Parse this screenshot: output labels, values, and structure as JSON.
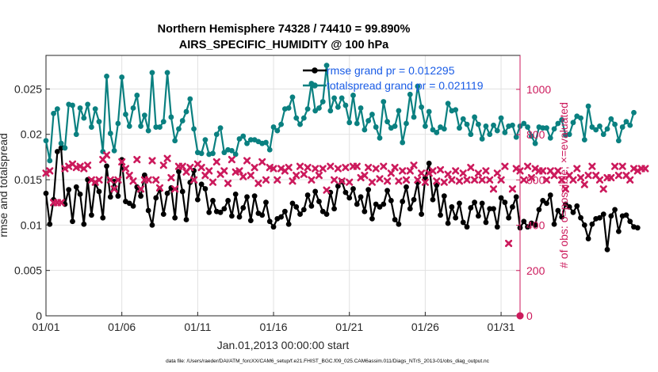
{
  "chart_data": {
    "type": "line",
    "title": "Northern Hemisphere 74328 / 74410 = 99.890%",
    "subtitle": "AIRS_SPECIFIC_HUMIDITY @ 100 hPa",
    "xlabel": "Jan.01,2013 00:00:00 start",
    "ylabel": "rmse and totalspread",
    "ylabel_right": "# of obs: o=possible; ×=evaluated",
    "footnote": "data file: /Users/raeder/DAI/ATM_forcXX/CAM6_setup/f.e21.FHIST_BGC.f09_025.CAM6assim.011/Diags_NTrS_2013-01/obs_diag_output.nc",
    "x_ticks": [
      "01/01",
      "01/06",
      "01/11",
      "01/16",
      "01/21",
      "01/26",
      "01/31"
    ],
    "x_tick_days": [
      0,
      5,
      10,
      15,
      20,
      25,
      30
    ],
    "xlim": [
      0,
      31.25
    ],
    "y_ticks": [
      "0",
      "0.005",
      "0.01",
      "0.015",
      "0.02",
      "0.025"
    ],
    "y_tick_values": [
      0,
      0.005,
      0.01,
      0.015,
      0.02,
      0.025
    ],
    "ylim": [
      0,
      0.0287
    ],
    "y2_ticks": [
      "0",
      "200",
      "400",
      "600",
      "800",
      "1000"
    ],
    "y2_tick_values": [
      0,
      200,
      400,
      600,
      800,
      1000
    ],
    "y2lim": [
      0,
      1150
    ],
    "grid": true,
    "legend_position": "top-right",
    "x_step_days": 0.25,
    "series": [
      {
        "name": "rmse grand pr = 0.012295",
        "color": "#000000",
        "marker": "circle",
        "axis": "left",
        "values": [
          0.0135,
          0.0101,
          0.0128,
          0.0181,
          0.0185,
          0.0123,
          0.0139,
          0.0104,
          0.0142,
          0.0134,
          0.0101,
          0.015,
          0.0111,
          0.0146,
          0.0137,
          0.0108,
          0.0165,
          0.0131,
          0.0148,
          0.0132,
          0.0172,
          0.0126,
          0.0124,
          0.0121,
          0.0142,
          0.0132,
          0.0155,
          0.0116,
          0.01,
          0.013,
          0.0139,
          0.0112,
          0.0135,
          0.0141,
          0.0108,
          0.0159,
          0.0137,
          0.0106,
          0.0147,
          0.016,
          0.0128,
          0.0145,
          0.014,
          0.0114,
          0.0127,
          0.0115,
          0.0114,
          0.0118,
          0.0127,
          0.011,
          0.0134,
          0.0109,
          0.0119,
          0.0131,
          0.0105,
          0.0132,
          0.0113,
          0.0111,
          0.0125,
          0.0104,
          0.0098,
          0.0107,
          0.0109,
          0.0115,
          0.0101,
          0.0124,
          0.012,
          0.0112,
          0.0117,
          0.0133,
          0.0121,
          0.0137,
          0.0126,
          0.0115,
          0.0112,
          0.0136,
          0.0118,
          0.0143,
          0.0148,
          0.0136,
          0.013,
          0.014,
          0.0123,
          0.0131,
          0.0115,
          0.0139,
          0.0107,
          0.0123,
          0.012,
          0.0123,
          0.0138,
          0.0127,
          0.0106,
          0.0101,
          0.0126,
          0.0142,
          0.0118,
          0.0128,
          0.0147,
          0.0112,
          0.0152,
          0.0168,
          0.0128,
          0.0144,
          0.0111,
          0.0132,
          0.0102,
          0.012,
          0.0108,
          0.0124,
          0.0103,
          0.0098,
          0.0119,
          0.0125,
          0.011,
          0.0124,
          0.0103,
          0.0118,
          0.0118,
          0.0098,
          0.013,
          0.0125,
          0.0108,
          0.012,
          0.0131,
          0.0097,
          0.0104,
          0.0098,
          0.0102,
          0.01,
          0.0117,
          0.0127,
          0.0124,
          0.0133,
          0.0101,
          0.0116,
          0.0109,
          0.0123,
          0.012,
          0.0114,
          0.0121,
          0.0108,
          0.01,
          0.0085,
          0.0101,
          0.0107,
          0.0108,
          0.0112,
          0.0073,
          0.011,
          0.0117,
          0.0093,
          0.011,
          0.0111,
          0.0104,
          0.0098,
          0.0097
        ]
      },
      {
        "name": "totalspread grand pr = 0.021119",
        "color": "#0a8080",
        "marker": "circle",
        "axis": "left",
        "values": [
          0.0193,
          0.0171,
          0.0223,
          0.0228,
          0.019,
          0.0185,
          0.0233,
          0.0232,
          0.02,
          0.0229,
          0.0218,
          0.0233,
          0.0208,
          0.0228,
          0.0214,
          0.0181,
          0.0264,
          0.0201,
          0.0182,
          0.0212,
          0.0263,
          0.0222,
          0.0209,
          0.0229,
          0.0243,
          0.0209,
          0.0221,
          0.0204,
          0.0268,
          0.0208,
          0.0208,
          0.0214,
          0.0268,
          0.0219,
          0.0193,
          0.0206,
          0.0215,
          0.0225,
          0.0239,
          0.0206,
          0.018,
          0.0179,
          0.0194,
          0.0178,
          0.0179,
          0.02,
          0.0207,
          0.018,
          0.0183,
          0.0182,
          0.0178,
          0.0195,
          0.0198,
          0.019,
          0.0194,
          0.0194,
          0.0192,
          0.019,
          0.0191,
          0.0183,
          0.0208,
          0.0204,
          0.0211,
          0.0228,
          0.0229,
          0.0241,
          0.0218,
          0.0211,
          0.0218,
          0.0228,
          0.0256,
          0.0226,
          0.0229,
          0.0236,
          0.0276,
          0.0226,
          0.024,
          0.023,
          0.024,
          0.0232,
          0.0213,
          0.0243,
          0.0212,
          0.0229,
          0.0205,
          0.0215,
          0.0222,
          0.0208,
          0.0196,
          0.0236,
          0.0214,
          0.0207,
          0.0209,
          0.0226,
          0.0191,
          0.0212,
          0.0244,
          0.0219,
          0.0253,
          0.023,
          0.0209,
          0.0225,
          0.0205,
          0.0202,
          0.0208,
          0.0206,
          0.0234,
          0.0226,
          0.0227,
          0.0207,
          0.0217,
          0.0211,
          0.02,
          0.0219,
          0.0211,
          0.0195,
          0.0209,
          0.02,
          0.021,
          0.0204,
          0.0218,
          0.0202,
          0.0209,
          0.021,
          0.0197,
          0.0209,
          0.0212,
          0.0208,
          0.0198,
          0.019,
          0.0208,
          0.0207,
          0.0207,
          0.0196,
          0.0206,
          0.0212,
          0.0216,
          0.0199,
          0.02,
          0.0213,
          0.022,
          0.0218,
          0.0194,
          0.0231,
          0.0208,
          0.0205,
          0.0209,
          0.02,
          0.0206,
          0.0217,
          0.0211,
          0.0193,
          0.0208,
          0.0214,
          0.021,
          0.0224
        ]
      },
      {
        "name": "# of obs evaluated",
        "color": "#cc1a5c",
        "marker": "x",
        "axis": "right",
        "values": [
          630,
          640,
          500,
          500,
          500,
          650,
          660,
          670,
          655,
          660,
          650,
          665,
          600,
          590,
          600,
          690,
          710,
          600,
          560,
          600,
          680,
          650,
          620,
          595,
          690,
          560,
          600,
          600,
          685,
          600,
          565,
          665,
          695,
          610,
          560,
          660,
          660,
          635,
          655,
          600,
          670,
          655,
          620,
          640,
          590,
          680,
          625,
          640,
          585,
          690,
          635,
          640,
          615,
          685,
          620,
          655,
          585,
          680,
          600,
          655,
          650,
          600,
          650,
          640,
          655,
          595,
          620,
          660,
          625,
          655,
          600,
          650,
          620,
          650,
          555,
          660,
          600,
          650,
          595,
          655,
          590,
          660,
          660,
          610,
          620,
          655,
          590,
          650,
          605,
          660,
          595,
          630,
          655,
          595,
          640,
          600,
          640,
          665,
          600,
          630,
          590,
          630,
          640,
          595,
          645,
          590,
          625,
          600,
          640,
          595,
          630,
          600,
          655,
          600,
          630,
          600,
          640,
          600,
          560,
          630,
          600,
          660,
          320,
          560,
          650,
          640,
          600,
          660,
          610,
          650,
          640,
          640,
          600,
          640,
          620,
          640,
          600,
          560,
          620,
          600,
          650,
          610,
          580,
          620,
          660,
          620,
          600,
          560,
          610,
          610,
          660,
          620,
          660,
          620,
          600,
          650,
          640,
          650,
          650
        ]
      },
      {
        "name": "# of obs possible",
        "color": "#cc1a5c",
        "marker": "circle-open",
        "axis": "right",
        "values": [
          0,
          0
        ]
      }
    ]
  }
}
